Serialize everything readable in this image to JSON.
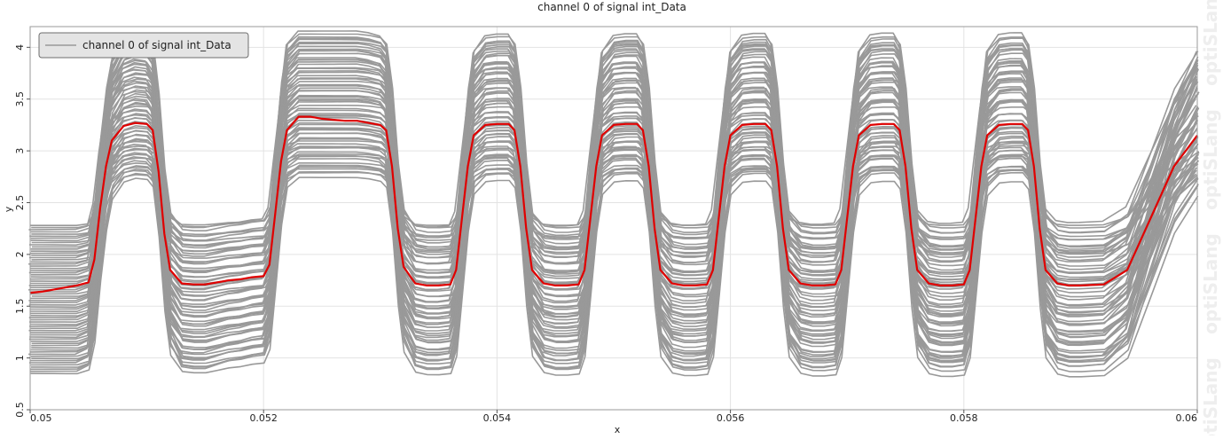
{
  "chart_data": {
    "type": "line",
    "title": "channel 0 of signal int_Data",
    "xlabel": "x",
    "ylabel": "y",
    "xlim": [
      0.05,
      0.06
    ],
    "ylim": [
      0.5,
      4.2
    ],
    "x_ticks": [
      "0.05",
      "0.052",
      "0.054",
      "0.056",
      "0.058",
      "0.06"
    ],
    "x_tick_values": [
      0.05,
      0.052,
      0.054,
      0.056,
      0.058,
      0.06
    ],
    "y_ticks": [
      "0.5",
      "1",
      "1.5",
      "2",
      "2.5",
      "3",
      "3.5",
      "4"
    ],
    "y_tick_values": [
      0.5,
      1,
      1.5,
      2,
      2.5,
      3,
      3.5,
      4
    ],
    "grid": true,
    "legend": {
      "position": "top-left",
      "entries": [
        "channel 0 of signal int_Data"
      ]
    },
    "colors": {
      "ensemble": "#999999",
      "highlight": "#e00000"
    },
    "ensemble": {
      "description_count": 70,
      "high_range": [
        2.75,
        4.15
      ],
      "low_range": [
        0.85,
        2.28
      ]
    },
    "series": [
      {
        "name": "channel 0 of signal int_Data",
        "color": "#e00000",
        "x": [
          0.05,
          0.0501,
          0.0502,
          0.0503,
          0.0504,
          0.0505,
          0.05055,
          0.0506,
          0.05065,
          0.0507,
          0.0508,
          0.0509,
          0.051,
          0.05105,
          0.0511,
          0.05115,
          0.0512,
          0.0513,
          0.0514,
          0.0515,
          0.0516,
          0.0517,
          0.0518,
          0.0519,
          0.052,
          0.05205,
          0.0521,
          0.05215,
          0.0522,
          0.0523,
          0.0524,
          0.0525,
          0.0526,
          0.0527,
          0.0528,
          0.0529,
          0.053,
          0.05305,
          0.0531,
          0.05315,
          0.0532,
          0.0533,
          0.0534,
          0.0535,
          0.0536,
          0.05365,
          0.0537,
          0.05375,
          0.0538,
          0.0539,
          0.054,
          0.0541,
          0.05415,
          0.0542,
          0.05425,
          0.0543,
          0.0544,
          0.0545,
          0.0546,
          0.0547,
          0.05475,
          0.0548,
          0.05485,
          0.0549,
          0.055,
          0.0551,
          0.0552,
          0.05525,
          0.0553,
          0.05535,
          0.0554,
          0.0555,
          0.0556,
          0.0557,
          0.0558,
          0.05585,
          0.0559,
          0.05595,
          0.056,
          0.0561,
          0.0562,
          0.0563,
          0.05635,
          0.0564,
          0.05645,
          0.0565,
          0.0566,
          0.0567,
          0.0568,
          0.0569,
          0.05695,
          0.057,
          0.05705,
          0.0571,
          0.0572,
          0.0573,
          0.0574,
          0.05745,
          0.0575,
          0.05755,
          0.0576,
          0.0577,
          0.0578,
          0.0579,
          0.058,
          0.05805,
          0.0581,
          0.05815,
          0.0582,
          0.0583,
          0.0584,
          0.0585,
          0.05855,
          0.0586,
          0.05865,
          0.0587,
          0.0588,
          0.0589,
          0.059,
          0.0592,
          0.0594,
          0.0596,
          0.0598,
          0.06
        ],
        "y": [
          1.63,
          1.64,
          1.66,
          1.68,
          1.7,
          1.73,
          1.95,
          2.45,
          2.85,
          3.1,
          3.24,
          3.27,
          3.26,
          3.2,
          2.8,
          2.2,
          1.85,
          1.72,
          1.71,
          1.71,
          1.73,
          1.75,
          1.76,
          1.78,
          1.79,
          1.9,
          2.4,
          2.9,
          3.2,
          3.33,
          3.33,
          3.31,
          3.3,
          3.29,
          3.29,
          3.27,
          3.25,
          3.2,
          2.85,
          2.25,
          1.88,
          1.72,
          1.7,
          1.7,
          1.71,
          1.85,
          2.35,
          2.85,
          3.15,
          3.25,
          3.26,
          3.26,
          3.2,
          2.85,
          2.25,
          1.85,
          1.72,
          1.7,
          1.7,
          1.71,
          1.85,
          2.35,
          2.85,
          3.15,
          3.25,
          3.26,
          3.26,
          3.2,
          2.85,
          2.25,
          1.85,
          1.72,
          1.7,
          1.7,
          1.71,
          1.85,
          2.35,
          2.85,
          3.15,
          3.25,
          3.26,
          3.26,
          3.2,
          2.85,
          2.25,
          1.85,
          1.72,
          1.7,
          1.7,
          1.71,
          1.85,
          2.35,
          2.85,
          3.15,
          3.25,
          3.26,
          3.26,
          3.2,
          2.85,
          2.25,
          1.85,
          1.72,
          1.7,
          1.7,
          1.71,
          1.85,
          2.35,
          2.85,
          3.15,
          3.25,
          3.26,
          3.26,
          3.2,
          2.85,
          2.25,
          1.85,
          1.72,
          1.7,
          1.7,
          1.71,
          1.85,
          2.35,
          2.85,
          3.15
        ]
      }
    ]
  },
  "watermark": {
    "text": "optiSLang",
    "color": "#eeeeee"
  }
}
